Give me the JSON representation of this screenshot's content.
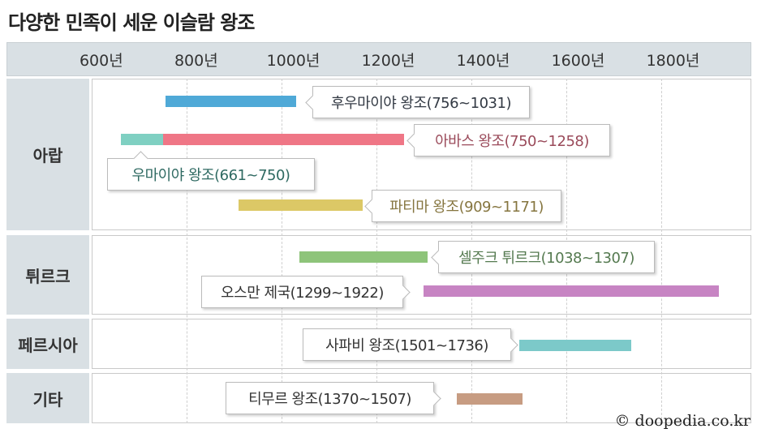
{
  "chart_data": {
    "type": "timeline",
    "title": "다양한 민족이 세운 이슬람 왕조",
    "xlim": [
      600,
      1990
    ],
    "ticks": [
      600,
      800,
      1000,
      1200,
      1400,
      1600,
      1800
    ],
    "tick_labels": [
      "600년",
      "800년",
      "1000년",
      "1200년",
      "1400년",
      "1600년",
      "1800년"
    ],
    "groups": [
      "아랍",
      "튀르크",
      "페르시아",
      "기타"
    ],
    "series": [
      {
        "name": "후우마이야 왕조",
        "label": "후우마이야 왕조(756~1031)",
        "group": "아랍",
        "start": 756,
        "end": 1031,
        "color": "#4fa9d7",
        "text_color": "#333a44"
      },
      {
        "name": "우마이야 왕조",
        "label": "우마이야 왕조(661~750)",
        "group": "아랍",
        "start": 661,
        "end": 750,
        "color": "#7fd0c2",
        "text_color": "#2f6a62"
      },
      {
        "name": "아바스 왕조",
        "label": "아바스 왕조(750~1258)",
        "group": "아랍",
        "start": 750,
        "end": 1258,
        "color": "#ef7686",
        "text_color": "#9a4a5a"
      },
      {
        "name": "파티마 왕조",
        "label": "파티마 왕조(909~1171)",
        "group": "아랍",
        "start": 909,
        "end": 1171,
        "color": "#dcc866",
        "text_color": "#867640"
      },
      {
        "name": "셀주크 튀르크",
        "label": "셀주크 튀르크(1038~1307)",
        "group": "튀르크",
        "start": 1038,
        "end": 1307,
        "color": "#8ec47a",
        "text_color": "#557a50"
      },
      {
        "name": "오스만 제국",
        "label": "오스만 제국(1299~1922)",
        "group": "튀르크",
        "start": 1299,
        "end": 1922,
        "color": "#c784c3",
        "text_color": "#333"
      },
      {
        "name": "사파비 왕조",
        "label": "사파비 왕조(1501~1736)",
        "group": "페르시아",
        "start": 1501,
        "end": 1736,
        "color": "#7cc9c9",
        "text_color": "#333"
      },
      {
        "name": "티무르 왕조",
        "label": "티무르 왕조(1370~1507)",
        "group": "기타",
        "start": 1370,
        "end": 1507,
        "color": "#c79c82",
        "text_color": "#333"
      }
    ]
  },
  "credit": "© doopedia.co.kr"
}
